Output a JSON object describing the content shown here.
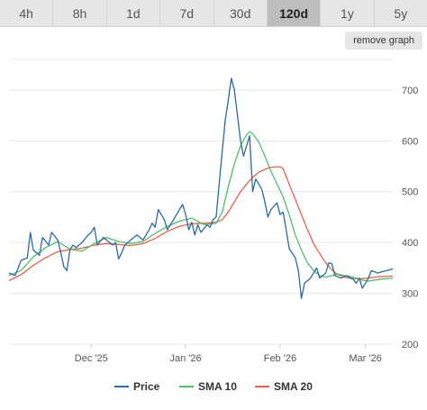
{
  "range_tabs": [
    {
      "label": "4h",
      "active": false
    },
    {
      "label": "8h",
      "active": false
    },
    {
      "label": "1d",
      "active": false
    },
    {
      "label": "7d",
      "active": false
    },
    {
      "label": "30d",
      "active": false
    },
    {
      "label": "120d",
      "active": true
    },
    {
      "label": "1y",
      "active": false
    },
    {
      "label": "5y",
      "active": false
    }
  ],
  "remove_graph_label": "remove graph",
  "chart_data": {
    "type": "line",
    "x_range": [
      0,
      126
    ],
    "ylim": [
      200,
      760
    ],
    "y_ticks": [
      200,
      300,
      400,
      500,
      600,
      700
    ],
    "x_ticks": [
      {
        "label": "Dec '25",
        "x": 27
      },
      {
        "label": "Jan '26",
        "x": 58
      },
      {
        "label": "Feb '26",
        "x": 89
      },
      {
        "label": "Mar '26",
        "x": 117
      }
    ],
    "grid": true,
    "legend_position": "bottom",
    "series": [
      {
        "name": "Price",
        "color": "#2b6aa3",
        "values": [
          [
            0,
            340
          ],
          [
            2,
            335
          ],
          [
            4,
            365
          ],
          [
            6,
            370
          ],
          [
            7,
            420
          ],
          [
            8,
            385
          ],
          [
            10,
            375
          ],
          [
            11,
            410
          ],
          [
            13,
            395
          ],
          [
            14,
            420
          ],
          [
            16,
            405
          ],
          [
            17,
            380
          ],
          [
            18,
            352
          ],
          [
            19,
            345
          ],
          [
            20,
            385
          ],
          [
            21,
            395
          ],
          [
            22,
            390
          ],
          [
            24,
            400
          ],
          [
            26,
            415
          ],
          [
            27,
            420
          ],
          [
            28,
            430
          ],
          [
            29,
            395
          ],
          [
            31,
            410
          ],
          [
            32,
            405
          ],
          [
            34,
            395
          ],
          [
            35,
            400
          ],
          [
            36,
            368
          ],
          [
            37,
            380
          ],
          [
            38,
            395
          ],
          [
            40,
            405
          ],
          [
            42,
            415
          ],
          [
            44,
            405
          ],
          [
            46,
            425
          ],
          [
            47,
            438
          ],
          [
            48,
            430
          ],
          [
            49,
            465
          ],
          [
            51,
            445
          ],
          [
            52,
            425
          ],
          [
            54,
            445
          ],
          [
            56,
            465
          ],
          [
            57,
            475
          ],
          [
            58,
            455
          ],
          [
            59,
            425
          ],
          [
            60,
            440
          ],
          [
            61,
            415
          ],
          [
            62,
            435
          ],
          [
            63,
            420
          ],
          [
            65,
            435
          ],
          [
            66,
            430
          ],
          [
            67,
            445
          ],
          [
            68,
            450
          ],
          [
            70,
            580
          ],
          [
            71,
            640
          ],
          [
            72,
            680
          ],
          [
            73,
            723
          ],
          [
            74,
            700
          ],
          [
            75,
            650
          ],
          [
            76,
            600
          ],
          [
            77,
            570
          ],
          [
            78,
            590
          ],
          [
            79,
            610
          ],
          [
            80,
            500
          ],
          [
            81,
            525
          ],
          [
            82,
            515
          ],
          [
            83,
            505
          ],
          [
            84,
            480
          ],
          [
            85,
            450
          ],
          [
            86,
            465
          ],
          [
            88,
            478
          ],
          [
            89,
            455
          ],
          [
            90,
            460
          ],
          [
            91,
            425
          ],
          [
            92,
            388
          ],
          [
            94,
            370
          ],
          [
            95,
            345
          ],
          [
            96,
            290
          ],
          [
            97,
            320
          ],
          [
            99,
            330
          ],
          [
            101,
            350
          ],
          [
            102,
            330
          ],
          [
            104,
            340
          ],
          [
            105,
            360
          ],
          [
            106,
            358
          ],
          [
            107,
            335
          ],
          [
            109,
            330
          ],
          [
            111,
            335
          ],
          [
            112,
            330
          ],
          [
            113,
            328
          ],
          [
            114,
            320
          ],
          [
            115,
            330
          ],
          [
            116,
            310
          ],
          [
            117,
            320
          ],
          [
            118,
            330
          ],
          [
            119,
            345
          ],
          [
            121,
            340
          ],
          [
            124,
            345
          ],
          [
            126,
            348
          ]
        ]
      },
      {
        "name": "SMA 10",
        "color": "#4fbf6a",
        "values": [
          [
            0,
            335
          ],
          [
            4,
            345
          ],
          [
            8,
            372
          ],
          [
            12,
            390
          ],
          [
            16,
            402
          ],
          [
            20,
            387
          ],
          [
            24,
            383
          ],
          [
            28,
            398
          ],
          [
            32,
            410
          ],
          [
            36,
            402
          ],
          [
            40,
            398
          ],
          [
            44,
            402
          ],
          [
            48,
            418
          ],
          [
            52,
            432
          ],
          [
            56,
            442
          ],
          [
            60,
            448
          ],
          [
            64,
            435
          ],
          [
            68,
            438
          ],
          [
            70,
            460
          ],
          [
            72,
            510
          ],
          [
            74,
            555
          ],
          [
            76,
            590
          ],
          [
            78,
            612
          ],
          [
            79,
            618
          ],
          [
            80,
            614
          ],
          [
            82,
            598
          ],
          [
            84,
            570
          ],
          [
            86,
            540
          ],
          [
            88,
            515
          ],
          [
            90,
            490
          ],
          [
            92,
            455
          ],
          [
            94,
            415
          ],
          [
            96,
            385
          ],
          [
            98,
            360
          ],
          [
            100,
            345
          ],
          [
            102,
            335
          ],
          [
            104,
            332
          ],
          [
            106,
            335
          ],
          [
            108,
            338
          ],
          [
            110,
            335
          ],
          [
            112,
            333
          ],
          [
            114,
            330
          ],
          [
            116,
            326
          ],
          [
            118,
            324
          ],
          [
            120,
            326
          ],
          [
            122,
            328
          ],
          [
            126,
            330
          ]
        ]
      },
      {
        "name": "SMA 20",
        "color": "#e8604c",
        "values": [
          [
            0,
            325
          ],
          [
            4,
            337
          ],
          [
            8,
            355
          ],
          [
            12,
            370
          ],
          [
            16,
            382
          ],
          [
            20,
            386
          ],
          [
            24,
            389
          ],
          [
            28,
            395
          ],
          [
            32,
            398
          ],
          [
            36,
            396
          ],
          [
            40,
            394
          ],
          [
            44,
            398
          ],
          [
            48,
            408
          ],
          [
            52,
            422
          ],
          [
            56,
            432
          ],
          [
            60,
            437
          ],
          [
            64,
            438
          ],
          [
            68,
            440
          ],
          [
            70,
            445
          ],
          [
            72,
            460
          ],
          [
            74,
            480
          ],
          [
            76,
            500
          ],
          [
            78,
            515
          ],
          [
            80,
            528
          ],
          [
            82,
            538
          ],
          [
            84,
            544
          ],
          [
            86,
            548
          ],
          [
            88,
            549
          ],
          [
            89,
            549
          ],
          [
            90,
            545
          ],
          [
            91,
            530
          ],
          [
            92,
            515
          ],
          [
            94,
            485
          ],
          [
            96,
            455
          ],
          [
            98,
            425
          ],
          [
            100,
            398
          ],
          [
            102,
            378
          ],
          [
            104,
            360
          ],
          [
            106,
            346
          ],
          [
            108,
            337
          ],
          [
            110,
            332
          ],
          [
            112,
            330
          ],
          [
            114,
            329
          ],
          [
            116,
            329
          ],
          [
            118,
            330
          ],
          [
            120,
            332
          ],
          [
            122,
            333
          ],
          [
            126,
            334
          ]
        ]
      }
    ]
  }
}
